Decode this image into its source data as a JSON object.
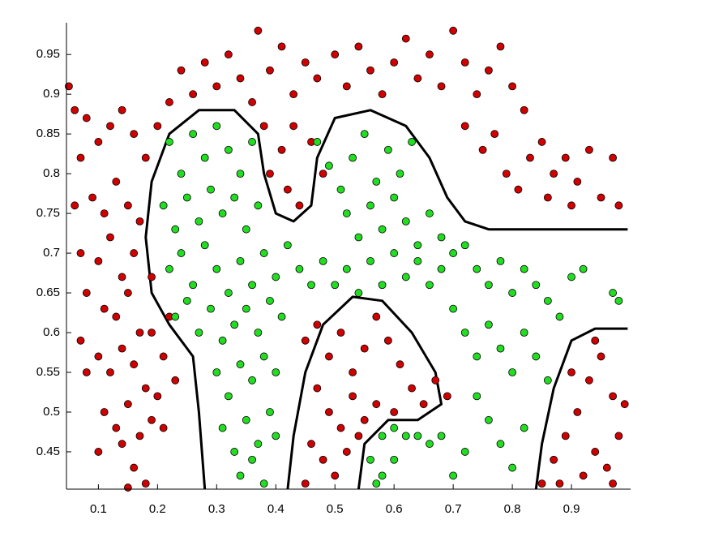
{
  "chart_data": {
    "type": "scatter",
    "xlim": [
      0.046,
      1.0
    ],
    "ylim": [
      0.403,
      0.99
    ],
    "xticks": [
      0.1,
      0.2,
      0.3,
      0.4,
      0.5,
      0.6,
      0.7,
      0.8,
      0.9
    ],
    "yticks": [
      0.45,
      0.5,
      0.55,
      0.6,
      0.65,
      0.7,
      0.75,
      0.8,
      0.85,
      0.9,
      0.95
    ],
    "series": [
      {
        "color": "#d00000",
        "x": [
          0.05,
          0.06,
          0.08,
          0.07,
          0.1,
          0.12,
          0.14,
          0.16,
          0.18,
          0.06,
          0.09,
          0.11,
          0.13,
          0.15,
          0.17,
          0.07,
          0.1,
          0.12,
          0.14,
          0.16,
          0.08,
          0.11,
          0.13,
          0.15,
          0.17,
          0.07,
          0.1,
          0.12,
          0.14,
          0.16,
          0.18,
          0.19,
          0.21,
          0.23,
          0.08,
          0.11,
          0.13,
          0.15,
          0.17,
          0.19,
          0.21,
          0.1,
          0.14,
          0.16,
          0.18,
          0.15,
          0.2,
          0.22,
          0.19,
          0.2,
          0.22,
          0.24,
          0.26,
          0.28,
          0.3,
          0.32,
          0.34,
          0.37,
          0.36,
          0.39,
          0.41,
          0.43,
          0.45,
          0.47,
          0.38,
          0.41,
          0.43,
          0.46,
          0.48,
          0.39,
          0.44,
          0.42,
          0.5,
          0.52,
          0.54,
          0.56,
          0.58,
          0.6,
          0.62,
          0.64,
          0.66,
          0.68,
          0.7,
          0.72,
          0.74,
          0.76,
          0.78,
          0.8,
          0.82,
          0.72,
          0.75,
          0.77,
          0.79,
          0.81,
          0.83,
          0.85,
          0.87,
          0.89,
          0.91,
          0.93,
          0.95,
          0.97,
          0.98,
          0.86,
          0.9,
          0.45,
          0.47,
          0.49,
          0.51,
          0.53,
          0.55,
          0.57,
          0.59,
          0.61,
          0.63,
          0.65,
          0.67,
          0.69,
          0.47,
          0.49,
          0.51,
          0.53,
          0.55,
          0.57,
          0.46,
          0.48,
          0.5,
          0.45,
          0.52,
          0.54,
          0.6,
          0.87,
          0.89,
          0.91,
          0.93,
          0.95,
          0.97,
          0.99,
          0.88,
          0.92,
          0.94,
          0.96,
          0.98,
          0.9,
          0.94,
          0.97,
          0.85
        ],
        "y": [
          0.91,
          0.88,
          0.87,
          0.82,
          0.84,
          0.86,
          0.88,
          0.85,
          0.82,
          0.76,
          0.77,
          0.75,
          0.79,
          0.76,
          0.74,
          0.7,
          0.69,
          0.72,
          0.67,
          0.7,
          0.65,
          0.63,
          0.62,
          0.65,
          0.6,
          0.59,
          0.57,
          0.55,
          0.58,
          0.56,
          0.53,
          0.6,
          0.57,
          0.54,
          0.55,
          0.5,
          0.48,
          0.51,
          0.47,
          0.49,
          0.48,
          0.45,
          0.46,
          0.43,
          0.41,
          0.405,
          0.52,
          0.62,
          0.67,
          0.86,
          0.89,
          0.93,
          0.9,
          0.94,
          0.91,
          0.95,
          0.92,
          0.98,
          0.89,
          0.93,
          0.96,
          0.9,
          0.94,
          0.92,
          0.86,
          0.83,
          0.86,
          0.84,
          0.8,
          0.8,
          0.76,
          0.78,
          0.95,
          0.91,
          0.96,
          0.93,
          0.9,
          0.94,
          0.97,
          0.92,
          0.95,
          0.91,
          0.98,
          0.94,
          0.9,
          0.93,
          0.96,
          0.91,
          0.88,
          0.86,
          0.83,
          0.85,
          0.8,
          0.78,
          0.82,
          0.84,
          0.8,
          0.82,
          0.79,
          0.83,
          0.77,
          0.82,
          0.76,
          0.77,
          0.76,
          0.59,
          0.61,
          0.57,
          0.6,
          0.55,
          0.58,
          0.62,
          0.59,
          0.56,
          0.53,
          0.51,
          0.54,
          0.52,
          0.53,
          0.5,
          0.48,
          0.52,
          0.49,
          0.51,
          0.46,
          0.44,
          0.42,
          0.41,
          0.45,
          0.47,
          0.5,
          0.44,
          0.47,
          0.5,
          0.54,
          0.57,
          0.52,
          0.51,
          0.41,
          0.42,
          0.45,
          0.43,
          0.47,
          0.55,
          0.59,
          0.41,
          0.41
        ]
      },
      {
        "color": "#22dd22",
        "x": [
          0.22,
          0.24,
          0.26,
          0.28,
          0.3,
          0.32,
          0.34,
          0.36,
          0.21,
          0.23,
          0.25,
          0.27,
          0.29,
          0.31,
          0.33,
          0.35,
          0.37,
          0.22,
          0.24,
          0.26,
          0.28,
          0.3,
          0.32,
          0.34,
          0.36,
          0.38,
          0.4,
          0.42,
          0.44,
          0.46,
          0.23,
          0.25,
          0.27,
          0.29,
          0.31,
          0.33,
          0.35,
          0.37,
          0.39,
          0.41,
          0.3,
          0.32,
          0.34,
          0.36,
          0.38,
          0.4,
          0.31,
          0.33,
          0.35,
          0.37,
          0.39,
          0.34,
          0.36,
          0.38,
          0.4,
          0.47,
          0.49,
          0.51,
          0.53,
          0.55,
          0.57,
          0.59,
          0.61,
          0.63,
          0.52,
          0.54,
          0.56,
          0.58,
          0.6,
          0.62,
          0.64,
          0.66,
          0.68,
          0.7,
          0.48,
          0.5,
          0.52,
          0.54,
          0.56,
          0.58,
          0.6,
          0.62,
          0.64,
          0.66,
          0.68,
          0.72,
          0.74,
          0.76,
          0.78,
          0.8,
          0.82,
          0.84,
          0.86,
          0.88,
          0.9,
          0.92,
          0.97,
          0.98,
          0.7,
          0.72,
          0.74,
          0.76,
          0.78,
          0.8,
          0.82,
          0.84,
          0.86,
          0.74,
          0.76,
          0.78,
          0.8,
          0.82,
          0.72,
          0.7,
          0.58,
          0.6,
          0.62,
          0.64,
          0.66,
          0.68,
          0.56,
          0.58,
          0.6,
          0.57
        ],
        "y": [
          0.84,
          0.8,
          0.85,
          0.82,
          0.86,
          0.83,
          0.8,
          0.84,
          0.76,
          0.73,
          0.77,
          0.74,
          0.78,
          0.75,
          0.77,
          0.73,
          0.76,
          0.68,
          0.7,
          0.66,
          0.71,
          0.68,
          0.65,
          0.69,
          0.66,
          0.7,
          0.67,
          0.71,
          0.68,
          0.66,
          0.62,
          0.64,
          0.6,
          0.63,
          0.59,
          0.61,
          0.63,
          0.6,
          0.64,
          0.62,
          0.55,
          0.52,
          0.56,
          0.54,
          0.57,
          0.55,
          0.48,
          0.45,
          0.49,
          0.46,
          0.5,
          0.42,
          0.44,
          0.41,
          0.47,
          0.84,
          0.81,
          0.78,
          0.82,
          0.85,
          0.79,
          0.83,
          0.8,
          0.84,
          0.75,
          0.72,
          0.76,
          0.73,
          0.77,
          0.74,
          0.71,
          0.75,
          0.72,
          0.7,
          0.69,
          0.66,
          0.68,
          0.65,
          0.69,
          0.66,
          0.7,
          0.67,
          0.69,
          0.66,
          0.68,
          0.71,
          0.68,
          0.66,
          0.69,
          0.65,
          0.68,
          0.66,
          0.64,
          0.62,
          0.67,
          0.68,
          0.65,
          0.64,
          0.63,
          0.6,
          0.57,
          0.61,
          0.58,
          0.55,
          0.6,
          0.57,
          0.54,
          0.52,
          0.49,
          0.46,
          0.43,
          0.48,
          0.45,
          0.42,
          0.47,
          0.48,
          0.47,
          0.47,
          0.46,
          0.47,
          0.44,
          0.42,
          0.44,
          0.41
        ]
      }
    ],
    "boundaries": [
      {
        "color": "#000000",
        "x": [
          0.28,
          0.27,
          0.26,
          0.22,
          0.19,
          0.18,
          0.19,
          0.22,
          0.27,
          0.33,
          0.37,
          0.38,
          0.4,
          0.43,
          0.46,
          0.47,
          0.5,
          0.56,
          0.62,
          0.66,
          0.69,
          0.72,
          0.76,
          0.85,
          0.995
        ],
        "y": [
          0.403,
          0.5,
          0.57,
          0.61,
          0.65,
          0.72,
          0.79,
          0.85,
          0.88,
          0.88,
          0.85,
          0.8,
          0.75,
          0.74,
          0.76,
          0.82,
          0.87,
          0.88,
          0.86,
          0.82,
          0.77,
          0.74,
          0.73,
          0.73,
          0.73
        ]
      },
      {
        "color": "#000000",
        "x": [
          0.42,
          0.43,
          0.45,
          0.48,
          0.53,
          0.58,
          0.63,
          0.67,
          0.68,
          0.64,
          0.59,
          0.55,
          0.54
        ],
        "y": [
          0.403,
          0.47,
          0.55,
          0.61,
          0.645,
          0.64,
          0.6,
          0.55,
          0.51,
          0.49,
          0.49,
          0.46,
          0.403
        ]
      },
      {
        "color": "#000000",
        "x": [
          0.84,
          0.85,
          0.87,
          0.9,
          0.94,
          0.995
        ],
        "y": [
          0.403,
          0.46,
          0.53,
          0.59,
          0.605,
          0.605
        ]
      }
    ]
  }
}
